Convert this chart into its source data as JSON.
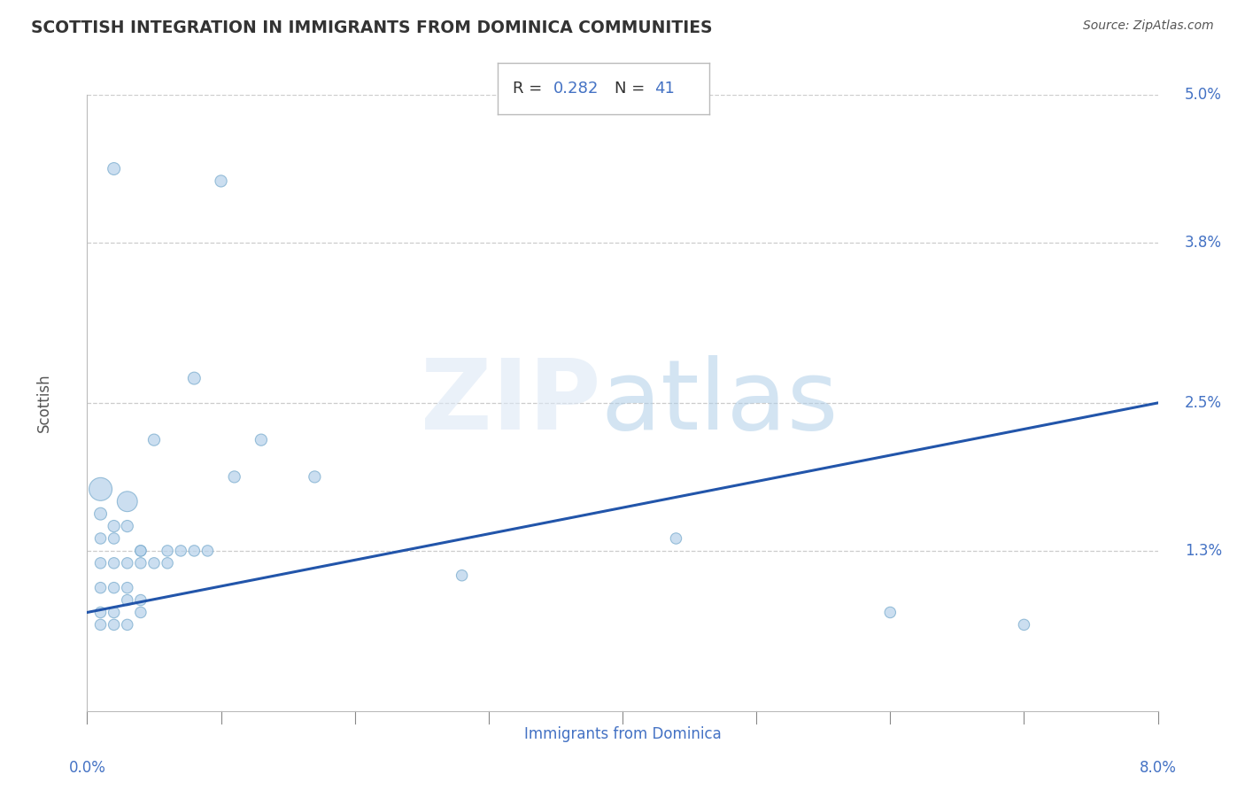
{
  "title": "SCOTTISH INTEGRATION IN IMMIGRANTS FROM DOMINICA COMMUNITIES",
  "source": "Source: ZipAtlas.com",
  "xlabel": "Immigrants from Dominica",
  "ylabel": "Scottish",
  "R": 0.282,
  "N": 41,
  "xlim": [
    0.0,
    0.08
  ],
  "ylim": [
    0.0,
    0.05
  ],
  "ytick_labels": [
    "5.0%",
    "3.8%",
    "2.5%",
    "1.3%"
  ],
  "ytick_values": [
    0.05,
    0.038,
    0.025,
    0.013
  ],
  "annotation_label_color": "#4472c4",
  "scatter_color": "#bad4eb",
  "scatter_edge_color": "#7aacce",
  "line_color": "#2255aa",
  "background_color": "#ffffff",
  "points": [
    [
      0.002,
      0.044
    ],
    [
      0.01,
      0.043
    ],
    [
      0.008,
      0.027
    ],
    [
      0.005,
      0.022
    ],
    [
      0.013,
      0.022
    ],
    [
      0.011,
      0.019
    ],
    [
      0.017,
      0.019
    ],
    [
      0.001,
      0.018
    ],
    [
      0.003,
      0.017
    ],
    [
      0.001,
      0.016
    ],
    [
      0.002,
      0.015
    ],
    [
      0.003,
      0.015
    ],
    [
      0.001,
      0.014
    ],
    [
      0.002,
      0.014
    ],
    [
      0.004,
      0.013
    ],
    [
      0.004,
      0.013
    ],
    [
      0.006,
      0.013
    ],
    [
      0.007,
      0.013
    ],
    [
      0.008,
      0.013
    ],
    [
      0.009,
      0.013
    ],
    [
      0.001,
      0.012
    ],
    [
      0.002,
      0.012
    ],
    [
      0.003,
      0.012
    ],
    [
      0.004,
      0.012
    ],
    [
      0.005,
      0.012
    ],
    [
      0.006,
      0.012
    ],
    [
      0.001,
      0.01
    ],
    [
      0.002,
      0.01
    ],
    [
      0.003,
      0.01
    ],
    [
      0.003,
      0.009
    ],
    [
      0.004,
      0.009
    ],
    [
      0.004,
      0.008
    ],
    [
      0.001,
      0.008
    ],
    [
      0.002,
      0.008
    ],
    [
      0.001,
      0.007
    ],
    [
      0.002,
      0.007
    ],
    [
      0.003,
      0.007
    ],
    [
      0.028,
      0.011
    ],
    [
      0.044,
      0.014
    ],
    [
      0.06,
      0.008
    ],
    [
      0.07,
      0.007
    ]
  ],
  "point_sizes": [
    100,
    90,
    100,
    90,
    90,
    90,
    90,
    350,
    270,
    100,
    90,
    90,
    80,
    80,
    80,
    80,
    80,
    80,
    80,
    80,
    80,
    80,
    80,
    80,
    80,
    80,
    80,
    80,
    80,
    80,
    80,
    80,
    80,
    80,
    80,
    80,
    80,
    80,
    80,
    80,
    80
  ],
  "line_x": [
    0.0,
    0.08
  ],
  "line_y": [
    0.008,
    0.025
  ]
}
